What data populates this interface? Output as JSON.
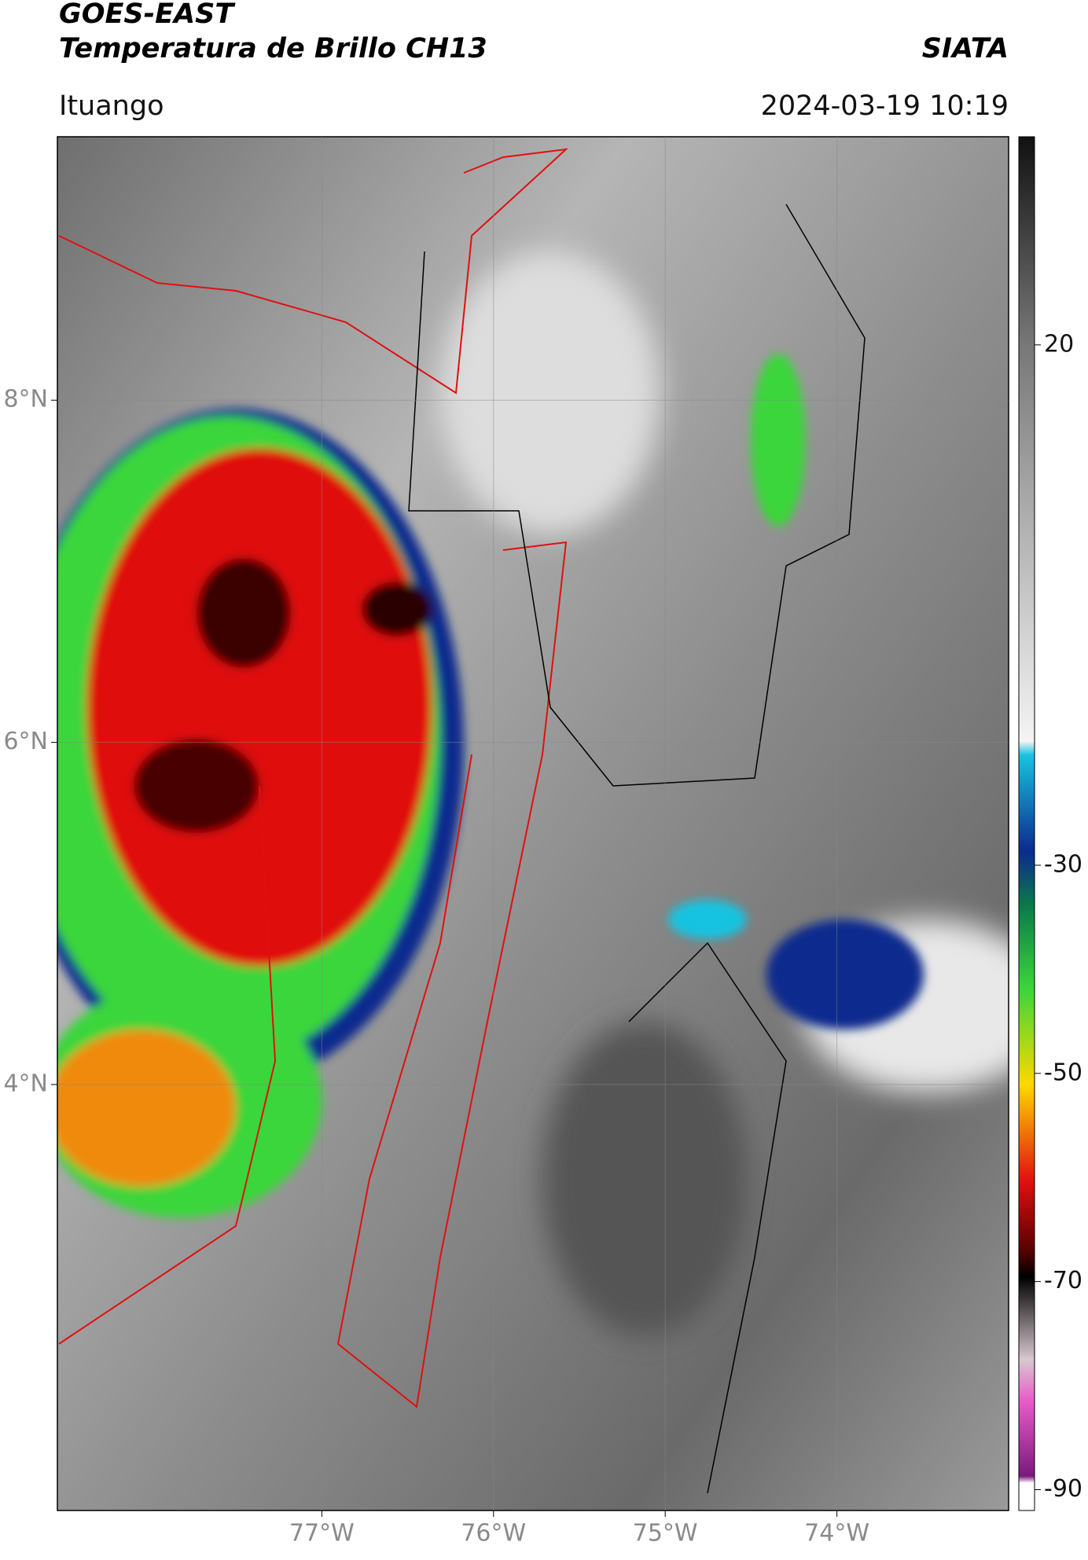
{
  "header": {
    "title": "GOES-EAST",
    "subtitle": "Temperatura de Brillo CH13",
    "brand": "SIATA",
    "location": "Ituango",
    "datetime": "2024-03-19 10:19"
  },
  "map": {
    "xlim": [
      -78.54,
      -73.0
    ],
    "ylim": [
      1.51,
      9.54
    ],
    "xticks": [
      {
        "value": -77,
        "label": "77°W"
      },
      {
        "value": -76,
        "label": "76°W"
      },
      {
        "value": -75,
        "label": "75°W"
      },
      {
        "value": -74,
        "label": "74°W"
      }
    ],
    "yticks": [
      {
        "value": 8,
        "label": "8°N"
      },
      {
        "value": 6,
        "label": "6°N"
      },
      {
        "value": 4,
        "label": "4°N"
      }
    ],
    "grid": true
  },
  "colorbar": {
    "clim": [
      -92,
      40
    ],
    "ticks": [
      20,
      -30,
      -50,
      -70,
      -90
    ]
  }
}
